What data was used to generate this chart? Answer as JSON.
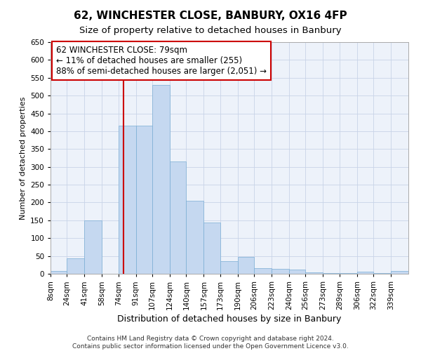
{
  "title": "62, WINCHESTER CLOSE, BANBURY, OX16 4FP",
  "subtitle": "Size of property relative to detached houses in Banbury",
  "xlabel": "Distribution of detached houses by size in Banbury",
  "ylabel": "Number of detached properties",
  "bins": [
    "8sqm",
    "24sqm",
    "41sqm",
    "58sqm",
    "74sqm",
    "91sqm",
    "107sqm",
    "124sqm",
    "140sqm",
    "157sqm",
    "173sqm",
    "190sqm",
    "206sqm",
    "223sqm",
    "240sqm",
    "256sqm",
    "273sqm",
    "289sqm",
    "306sqm",
    "322sqm",
    "339sqm"
  ],
  "bin_edges": [
    8,
    24,
    41,
    58,
    74,
    91,
    107,
    124,
    140,
    157,
    173,
    190,
    206,
    223,
    240,
    256,
    273,
    289,
    306,
    322,
    339,
    356
  ],
  "values": [
    8,
    44,
    150,
    0,
    415,
    415,
    530,
    315,
    205,
    143,
    35,
    48,
    15,
    13,
    12,
    3,
    2,
    2,
    5,
    2,
    8
  ],
  "bar_color": "#c5d8f0",
  "bar_edge_color": "#7aadd4",
  "bar_alpha": 1.0,
  "vline_x": 79,
  "vline_color": "#cc0000",
  "annotation_text": "62 WINCHESTER CLOSE: 79sqm\n← 11% of detached houses are smaller (255)\n88% of semi-detached houses are larger (2,051) →",
  "annotation_box_color": "#ffffff",
  "annotation_box_edge": "#cc0000",
  "grid_color": "#c8d4e8",
  "bg_color": "#edf2fa",
  "ylim": [
    0,
    650
  ],
  "yticks": [
    0,
    50,
    100,
    150,
    200,
    250,
    300,
    350,
    400,
    450,
    500,
    550,
    600,
    650
  ],
  "footer": "Contains HM Land Registry data © Crown copyright and database right 2024.\nContains public sector information licensed under the Open Government Licence v3.0.",
  "title_fontsize": 11,
  "subtitle_fontsize": 9.5,
  "xlabel_fontsize": 9,
  "ylabel_fontsize": 8,
  "tick_fontsize": 7.5,
  "annotation_fontsize": 8.5,
  "footer_fontsize": 6.5
}
